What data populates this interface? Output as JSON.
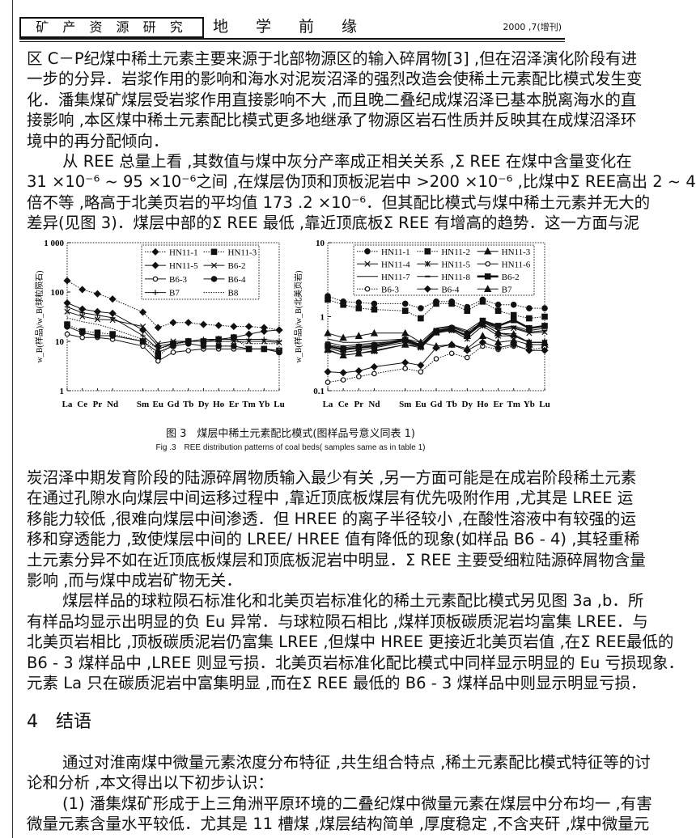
{
  "header": {
    "section": "矿 产 资 源 研 究",
    "journal": "地 学 前 缘",
    "issue": "2000 ,7(增刊)"
  },
  "block1": [
    "区 C－P纪煤中稀土元素主要来源于北部物源区的输入碎屑物[3] ,但在沼泽演化阶段有进",
    "一步的分异．岩浆作用的影响和海水对泥炭沼泽的强烈改造会使稀土元素配比模式发生变",
    "化．潘集煤矿煤层受岩浆作用直接影响不大 ,而且晚二叠纪成煤沼泽已基本脱离海水的直",
    "接影响 ,本区煤中稀土元素配比模式更多地继承了物源区岩石性质并反映其在成煤沼泽环",
    "境中的再分配倾向．",
    "从 REE 总量上看 ,其数值与煤中灰分产率成正相关关系 ,Σ REE 在煤中含量变化在",
    "31 ×10⁻⁶ ~ 95 ×10⁻⁶之间 ,在煤层伪顶和顶板泥岩中 >200 ×10⁻⁶ ,比煤中Σ REE高出 2 ~ 4",
    "倍不等 ,略高于北美页岩的平均值 173 .2 ×10⁻⁶．但其配比模式与煤中稀土元素并无大的",
    "差异(见图 3)．煤层中部的Σ REE 最低 ,靠近顶底板Σ REE 有增高的趋势．这一方面与泥"
  ],
  "block2": [
    "炭沼泽中期发育阶段的陆源碎屑物质输入最少有关 ,另一方面可能是在成岩阶段稀土元素",
    "在通过孔隙水向煤层中间运移过程中 ,靠近顶底板煤层有优先吸附作用 ,尤其是 LREE 运",
    "移能力较低 ,很难向煤层中间渗透．但 HREE 的离子半径较小 ,在酸性溶液中有较强的运",
    "移和穿透能力 ,致使煤层中间的 LREE/ HREE 值有降低的现象(如样品 B6 - 4) ,其轻重稀",
    "土元素分异不如在近顶底板煤层和顶底板泥岩中明显．Σ REE 主要受细粒陆源碎屑物含量",
    "影响 ,而与煤中成岩矿物无关．",
    "煤层样品的球粒陨石标准化和北美页岩标准化的稀土元素配比模式另见图 3a ,b．所",
    "有样品均显示出明显的负 Eu 异常．与球粒陨石相比 ,煤样顶板碳质泥岩均富集 LREE．与",
    "北美页岩相比 ,顶板碳质泥岩仍富集 LREE ,但煤中 HREE 更接近北美页岩值 ,在Σ REE最低的",
    "B6 - 3 煤样品中 ,LREE 则显亏损．北美页岩标准化配比模式中同样显示明显的 Eu 亏损现象．",
    "元素 La 只在碳质泥岩中富集明显 ,而在Σ REE 最低的 B6 - 3 煤样品中则显示明显亏损．"
  ],
  "heading": {
    "number": "4",
    "title": "结语"
  },
  "block3": [
    "通过对淮南煤中微量元素浓度分布特征 ,共生组合特点 ,稀土元素配比模式特征等的讨",
    "论和分析 ,本文得出以下初步认识：",
    "(1) 潘集煤矿形成于上三角洲平原环境的二叠纪煤中微量元素在煤层中分布均一 ,有害",
    "微量元素含量水平较低．尤其是 11 槽煤 ,煤层结构简单 ,厚度稳定 ,不含夹矸 ,煤中微量元"
  ],
  "figure": {
    "caption_zh": "图 3　煤层中稀土元素配比模式(图样品号意义同表 1)",
    "caption_en": "Fig .3　REE distribution patterns of coal beds( samples same as in table 1)"
  },
  "chart_data": [
    {
      "type": "line",
      "panel": "a",
      "ylabel": "w_B(样品)/w_B(球粒陨石)",
      "yscale": "log",
      "ylim": [
        1,
        1000
      ],
      "yticks": [
        "1 000",
        "100",
        "10",
        "1"
      ],
      "categories": [
        "La",
        "Ce",
        "Pr",
        "Nd",
        "Sm",
        "Eu",
        "Gd",
        "Tb",
        "Dy",
        "Ho",
        "Er",
        "Tm",
        "Yb",
        "Lu"
      ],
      "grid": false,
      "legend": "top-right",
      "series": [
        {
          "name": "HN11-1",
          "marker": "diamond",
          "dash": "dotted",
          "values": [
            170,
            112,
            92,
            72,
            39,
            19,
            24,
            24,
            22,
            21,
            20,
            20,
            19,
            17
          ]
        },
        {
          "name": "HN11-3",
          "marker": "square",
          "dash": "dotted",
          "values": [
            22,
            16,
            15,
            14,
            10,
            5,
            9,
            10,
            10,
            11,
            12,
            7,
            7,
            6.5
          ]
        },
        {
          "name": "HN11-5",
          "marker": "diamond",
          "dash": "solid",
          "values": [
            60,
            45,
            40,
            37,
            17,
            8,
            9,
            10,
            10,
            11,
            12,
            14,
            16,
            17
          ]
        },
        {
          "name": "B6-2",
          "marker": "x",
          "dash": "solid",
          "values": [
            40,
            32,
            28,
            27,
            20,
            9,
            10,
            10,
            10,
            10,
            10,
            10,
            10,
            9.5
          ]
        },
        {
          "name": "B6-3",
          "marker": "open-circle",
          "dash": "solid",
          "values": [
            14,
            12,
            12,
            11,
            8,
            4,
            6,
            6.5,
            7,
            7,
            7,
            7,
            7,
            6.5
          ]
        },
        {
          "name": "B6-4",
          "marker": "circle",
          "dash": "solid",
          "values": [
            20,
            15,
            13,
            13,
            10,
            6,
            8,
            9,
            8,
            8,
            8,
            7,
            7,
            6
          ]
        },
        {
          "name": "B7",
          "marker": "plus",
          "dash": "solid",
          "values": [
            50,
            38,
            34,
            30,
            13,
            7,
            9,
            10,
            11,
            11,
            11,
            11,
            11,
            10
          ]
        },
        {
          "name": "B8",
          "marker": "none",
          "dash": "dotted",
          "values": [
            30,
            25,
            22,
            18,
            11,
            7,
            8.5,
            10,
            10,
            10,
            10,
            9,
            9,
            9
          ]
        }
      ]
    },
    {
      "type": "line",
      "panel": "b",
      "ylabel": "w_B(样品)/w_B(北美页岩)",
      "yscale": "log",
      "ylim": [
        0.1,
        10
      ],
      "yticks": [
        "10",
        "1",
        "0.1"
      ],
      "categories": [
        "La",
        "Ce",
        "Pr",
        "Nd",
        "Sm",
        "Eu",
        "Gd",
        "Tb",
        "Dy",
        "Ho",
        "Er",
        "Tm",
        "Yb",
        "Lu"
      ],
      "grid": false,
      "legend": "top",
      "series": [
        {
          "name": "HN11-1",
          "marker": "circle",
          "dash": "dotted",
          "values": [
            1.9,
            1.6,
            1.55,
            1.5,
            1.5,
            1.3,
            1.6,
            1.6,
            1.35,
            1.7,
            1.45,
            1.45,
            1.3,
            1.3
          ]
        },
        {
          "name": "HN11-2",
          "marker": "square",
          "dash": "dotted",
          "values": [
            1.7,
            1.45,
            1.3,
            1.25,
            1.2,
            0.95,
            1.5,
            1.5,
            1.2,
            1.6,
            1.2,
            1.05,
            0.95,
            1.0
          ]
        },
        {
          "name": "HN11-3",
          "marker": "triangle",
          "dash": "solid",
          "values": [
            0.6,
            0.52,
            0.55,
            0.6,
            0.6,
            0.45,
            0.4,
            0.42,
            0.37,
            0.55,
            0.45,
            0.48,
            0.42,
            0.42
          ]
        },
        {
          "name": "HN11-4",
          "marker": "x",
          "dash": "solid",
          "values": [
            0.38,
            0.33,
            0.35,
            0.38,
            0.45,
            0.4,
            0.65,
            0.7,
            0.55,
            0.85,
            0.65,
            0.7,
            0.6,
            0.62
          ]
        },
        {
          "name": "HN11-5",
          "marker": "star",
          "dash": "solid",
          "values": [
            0.35,
            0.3,
            0.32,
            0.34,
            0.42,
            0.38,
            0.6,
            0.65,
            0.5,
            0.75,
            0.55,
            0.55,
            0.45,
            0.45
          ]
        },
        {
          "name": "HN11-6",
          "marker": "open-circle",
          "dash": "solid",
          "values": [
            0.42,
            0.38,
            0.4,
            0.42,
            0.5,
            0.42,
            0.65,
            0.72,
            0.6,
            0.8,
            0.6,
            0.55,
            0.45,
            0.45
          ]
        },
        {
          "name": "HN11-7",
          "marker": "none",
          "dash": "solid",
          "values": [
            0.5,
            0.45,
            0.45,
            0.47,
            0.5,
            0.45,
            0.7,
            0.75,
            0.65,
            0.9,
            0.7,
            0.75,
            0.65,
            0.7
          ]
        },
        {
          "name": "HN11-8",
          "marker": "dash",
          "dash": "solid",
          "values": [
            0.45,
            0.4,
            0.42,
            0.44,
            0.48,
            0.42,
            0.68,
            0.74,
            0.62,
            0.85,
            0.7,
            0.72,
            0.62,
            0.65
          ]
        },
        {
          "name": "B6-2",
          "marker": "square",
          "dash": "thick",
          "values": [
            0.4,
            0.36,
            0.38,
            0.4,
            0.48,
            0.4,
            0.62,
            0.68,
            0.55,
            0.88,
            0.75,
            0.9,
            0.7,
            0.75
          ]
        },
        {
          "name": "B6-3",
          "marker": "open-circle",
          "dash": "dotted",
          "values": [
            0.13,
            0.14,
            0.155,
            0.17,
            0.2,
            0.18,
            0.27,
            0.32,
            0.28,
            0.4,
            0.36,
            0.4,
            0.36,
            0.38
          ]
        },
        {
          "name": "B6-4",
          "marker": "diamond",
          "dash": "solid",
          "values": [
            0.18,
            0.175,
            0.185,
            0.21,
            0.24,
            0.22,
            0.38,
            0.42,
            0.35,
            0.45,
            0.38,
            0.42,
            0.35,
            0.35
          ]
        },
        {
          "name": "B7",
          "marker": "triangle",
          "dash": "solid",
          "values": [
            0.36,
            0.3,
            0.32,
            0.35,
            0.42,
            0.4,
            0.62,
            0.68,
            0.55,
            0.8,
            0.6,
            0.58,
            0.45,
            0.45
          ]
        }
      ]
    }
  ]
}
